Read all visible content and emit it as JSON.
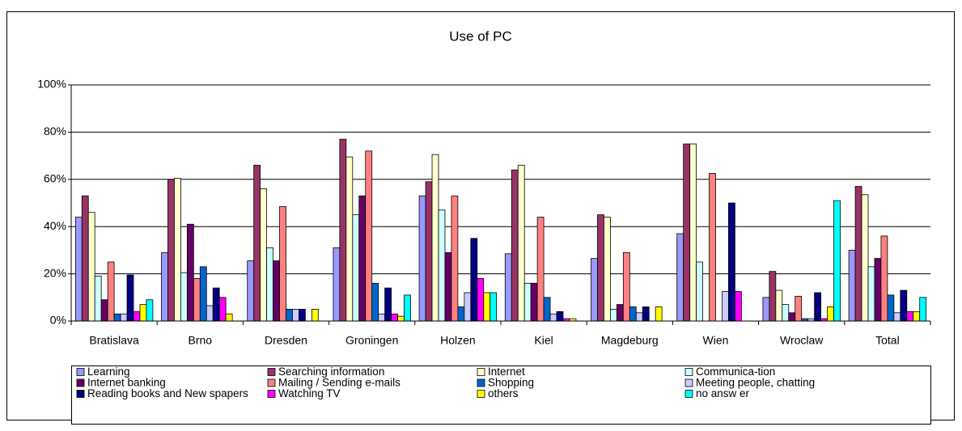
{
  "chart_data": {
    "type": "bar",
    "title": "Use of PC",
    "categories": [
      "Bratislava",
      "Brno",
      "Dresden",
      "Groningen",
      "Holzen",
      "Kiel",
      "Magdeburg",
      "Wien",
      "Wroclaw",
      "Total"
    ],
    "series": [
      {
        "name": "Learning",
        "color": "#9999ff",
        "values": [
          44,
          29,
          25.5,
          31,
          53,
          28.5,
          26.5,
          37,
          10,
          30
        ]
      },
      {
        "name": "Searching information",
        "color": "#993366",
        "values": [
          53,
          60,
          66,
          77,
          59,
          64,
          45,
          75,
          21,
          57
        ]
      },
      {
        "name": "Internet",
        "color": "#ffffcc",
        "values": [
          46,
          60.5,
          56,
          69.5,
          70.5,
          66,
          44,
          75,
          13,
          53.5
        ]
      },
      {
        "name": "Communica-tion",
        "color": "#ccffff",
        "values": [
          19,
          20.5,
          31,
          45,
          47,
          16,
          5,
          25,
          7,
          23
        ]
      },
      {
        "name": "Internet banking",
        "color": "#660066",
        "values": [
          9,
          41,
          25.5,
          53,
          29,
          16,
          7,
          0,
          3.5,
          26.5
        ]
      },
      {
        "name": "Mailing / Sending e-mails",
        "color": "#ff8080",
        "values": [
          25,
          18,
          48.5,
          72,
          53,
          44,
          29,
          62.5,
          10.5,
          36
        ]
      },
      {
        "name": "Shopping",
        "color": "#0066cc",
        "values": [
          3,
          23,
          5,
          16,
          6,
          10,
          6,
          0,
          1,
          11
        ]
      },
      {
        "name": "Meeting people, chatting",
        "color": "#ccccff",
        "values": [
          3,
          6.5,
          5,
          3,
          12,
          3,
          3.5,
          12.5,
          1,
          3.5
        ]
      },
      {
        "name": "Reading books and New spapers",
        "color": "#000080",
        "values": [
          19.5,
          14,
          5,
          14,
          35,
          4,
          6,
          50,
          12,
          13
        ]
      },
      {
        "name": "Watching TV",
        "color": "#ff00ff",
        "values": [
          4,
          10,
          0,
          3,
          18,
          1,
          0,
          12.5,
          1,
          4
        ]
      },
      {
        "name": "others",
        "color": "#ffff00",
        "values": [
          7,
          3,
          5,
          2,
          12,
          1,
          6,
          0,
          6,
          4
        ]
      },
      {
        "name": "no answ er",
        "color": "#00ffff",
        "values": [
          9,
          0,
          0,
          11,
          12,
          0,
          0,
          0,
          51,
          10
        ]
      }
    ],
    "ylim": [
      0,
      100
    ],
    "yticks": [
      {
        "value": 0,
        "label": "0%"
      },
      {
        "value": 20,
        "label": "20%"
      },
      {
        "value": 40,
        "label": "40%"
      },
      {
        "value": 60,
        "label": "60%"
      },
      {
        "value": 80,
        "label": "80%"
      },
      {
        "value": 100,
        "label": "100%"
      }
    ],
    "grid": true,
    "legend": "bottom"
  }
}
